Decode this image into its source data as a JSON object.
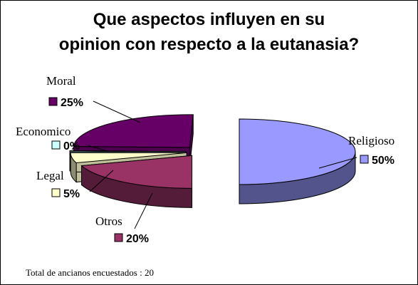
{
  "chart_data": {
    "type": "pie",
    "title_lines": [
      "Que aspectos influyen en su",
      "opinion con respecto a la eutanasia?"
    ],
    "slices": [
      {
        "label": "Religioso",
        "value": 50,
        "value_label": "50%",
        "color": "#9999ff"
      },
      {
        "label": "Otros",
        "value": 20,
        "value_label": "20%",
        "color": "#993366"
      },
      {
        "label": "Legal",
        "value": 5,
        "value_label": "5%",
        "color": "#ffffcc"
      },
      {
        "label": "Economico",
        "value": 0,
        "value_label": "0%",
        "color": "#ccffff"
      },
      {
        "label": "Moral",
        "value": 25,
        "value_label": "25%",
        "color": "#660066"
      }
    ],
    "footnote": "Total de ancianos encuestados : 20"
  }
}
